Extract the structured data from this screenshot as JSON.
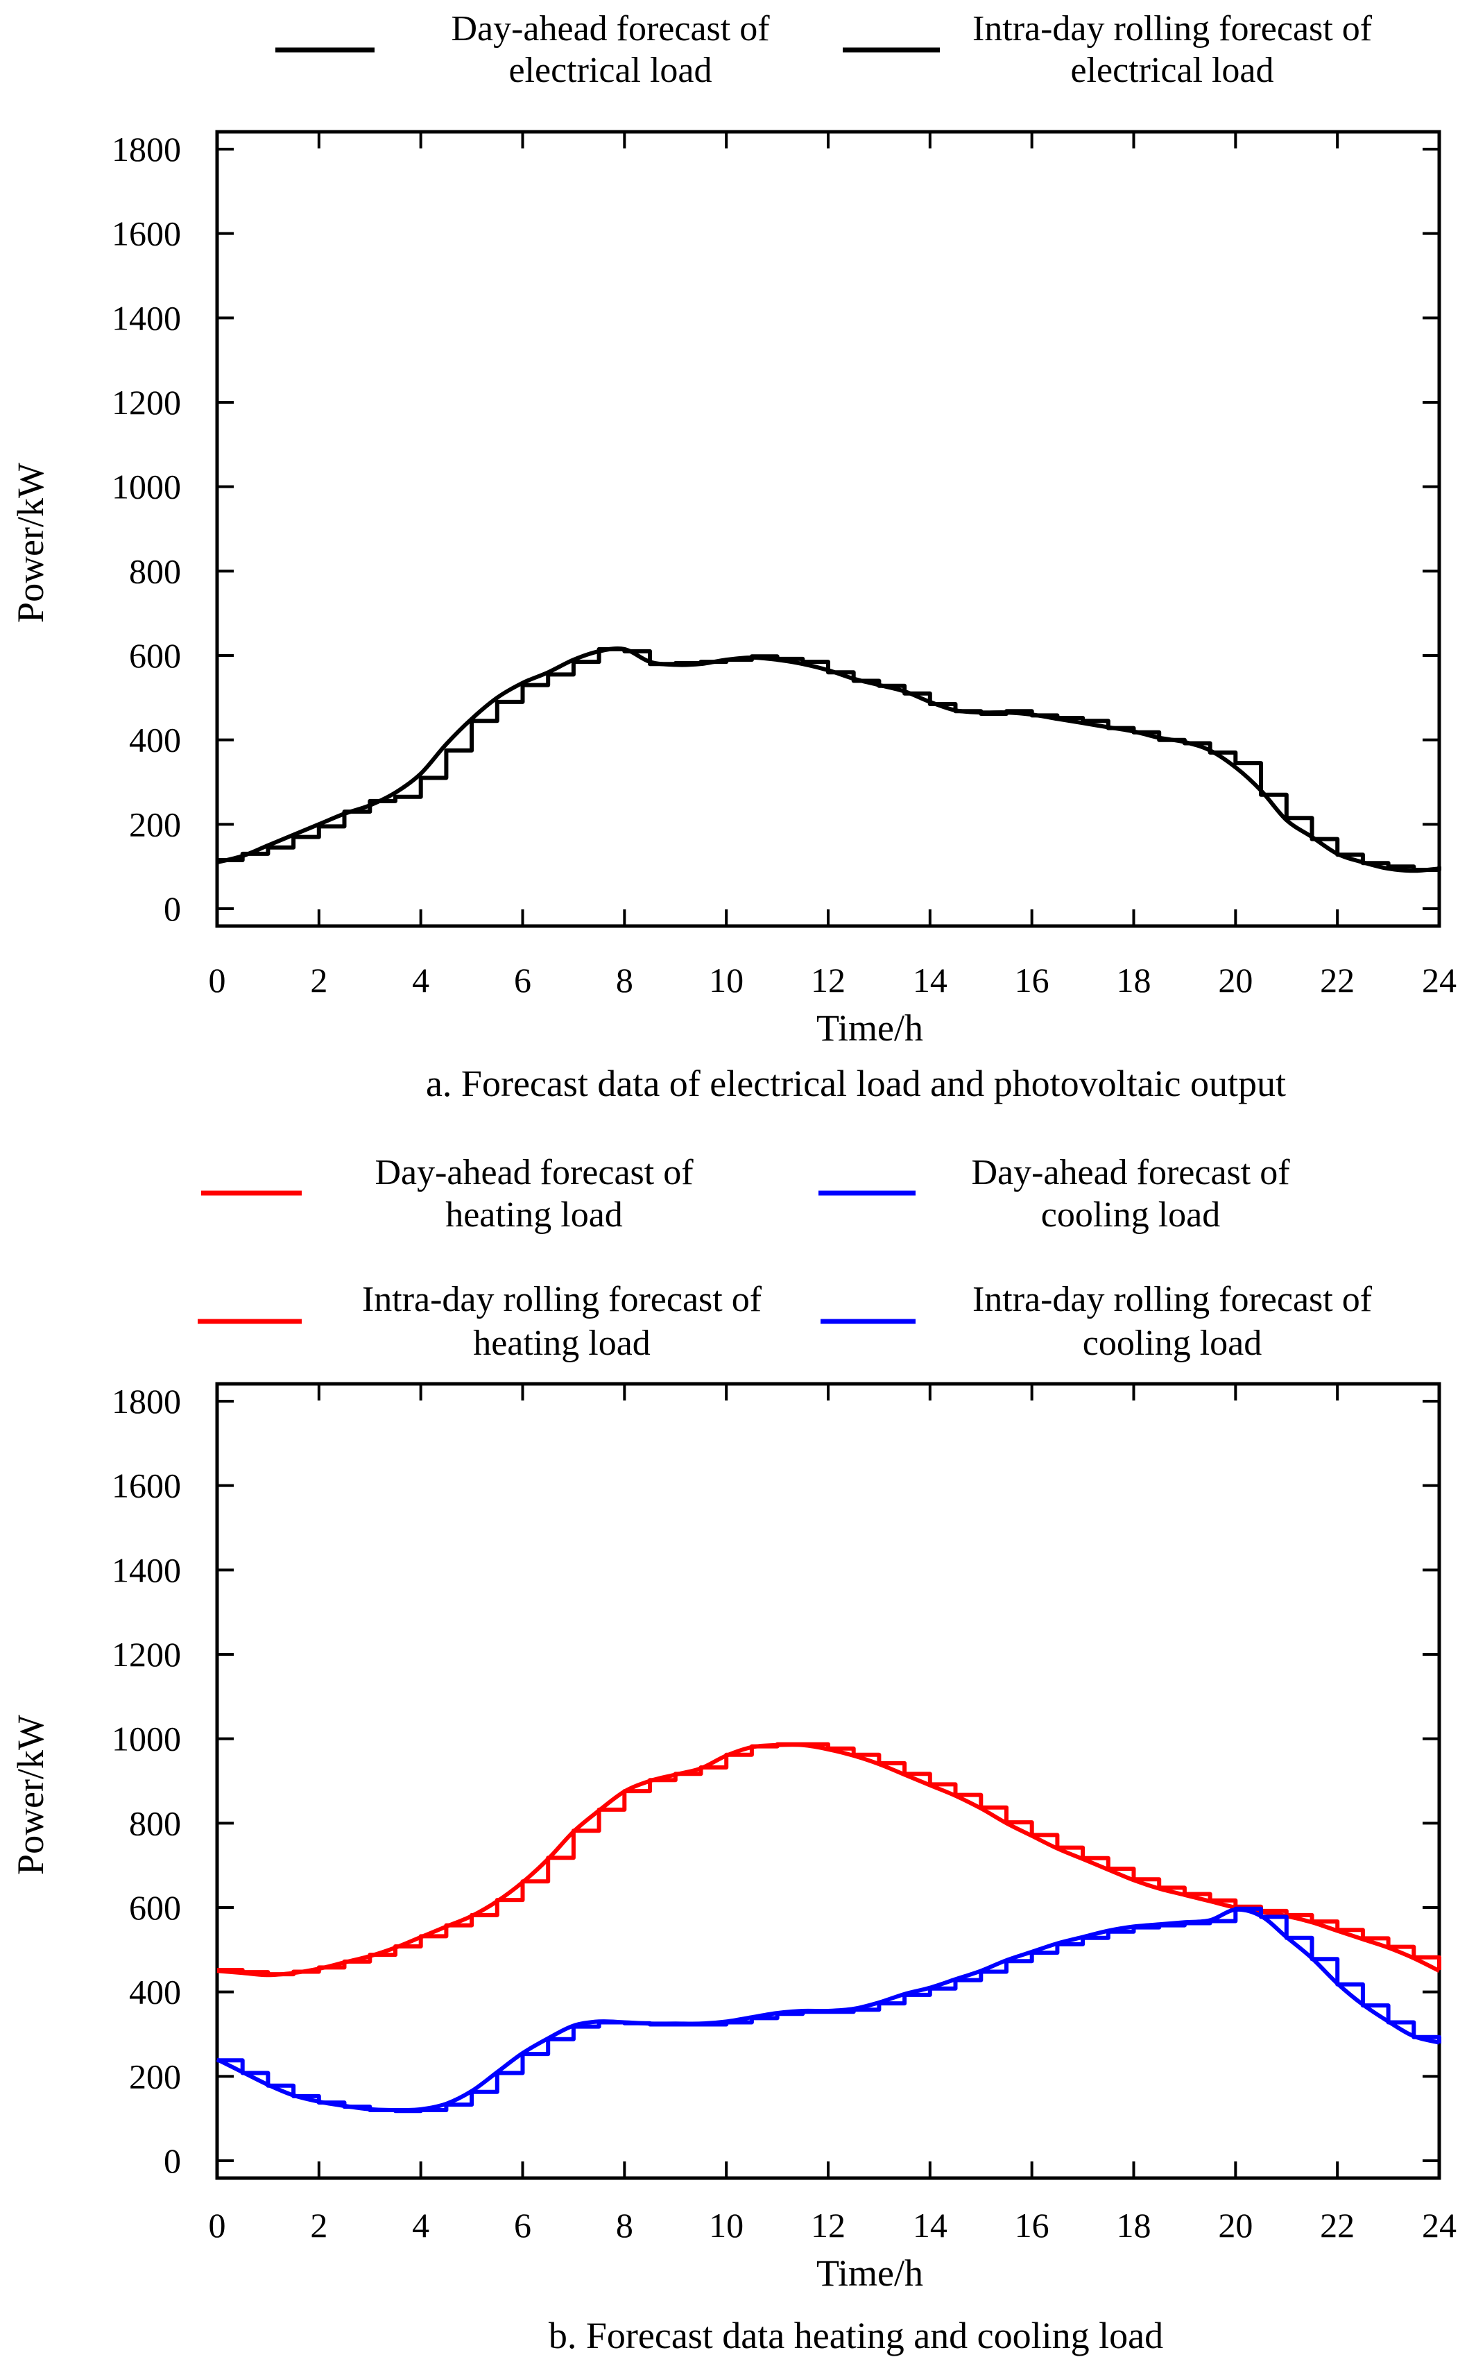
{
  "chart_data": [
    {
      "type": "line",
      "caption": "a. Forecast data of electrical load and photovoltaic output",
      "xlabel": "Time/h",
      "ylabel": "Power/kW",
      "xlim": [
        0,
        24
      ],
      "ylim": [
        0,
        1800
      ],
      "xticks": [
        "0",
        "2",
        "4",
        "6",
        "8",
        "10",
        "12",
        "14",
        "16",
        "18",
        "20",
        "22",
        "24"
      ],
      "yticks": [
        "0",
        "200",
        "400",
        "600",
        "800",
        "1000",
        "1200",
        "1400",
        "1600",
        "1800"
      ],
      "legend_position": "top",
      "series": [
        {
          "name_lines": [
            "Day-ahead forecast of",
            "electrical load"
          ],
          "color": "#000000",
          "style": "smooth",
          "x": [
            0,
            0.5,
            1,
            1.5,
            2,
            2.5,
            3,
            3.5,
            4,
            4.5,
            5,
            5.5,
            6,
            6.5,
            7,
            7.5,
            8,
            8.5,
            9,
            9.5,
            10,
            10.5,
            11,
            11.5,
            12,
            12.5,
            13,
            13.5,
            14,
            14.5,
            15,
            15.5,
            16,
            16.5,
            17,
            17.5,
            18,
            18.5,
            19,
            19.5,
            20,
            20.5,
            21,
            21.5,
            22,
            22.5,
            23,
            23.5,
            24
          ],
          "values": [
            110,
            125,
            150,
            175,
            200,
            225,
            245,
            275,
            320,
            390,
            450,
            500,
            535,
            560,
            590,
            610,
            615,
            585,
            578,
            580,
            590,
            595,
            590,
            580,
            565,
            545,
            530,
            515,
            490,
            470,
            465,
            465,
            460,
            450,
            440,
            430,
            420,
            405,
            395,
            375,
            335,
            280,
            210,
            170,
            130,
            110,
            95,
            90,
            95
          ]
        },
        {
          "name_lines": [
            "Intra-day rolling forecast of",
            "electrical load"
          ],
          "color": "#000000",
          "style": "step",
          "x": [
            0,
            0.5,
            1,
            1.5,
            2,
            2.5,
            3,
            3.5,
            4,
            4.5,
            5,
            5.5,
            6,
            6.5,
            7,
            7.5,
            8,
            8.5,
            9,
            9.5,
            10,
            10.5,
            11,
            11.5,
            12,
            12.5,
            13,
            13.5,
            14,
            14.5,
            15,
            15.5,
            16,
            16.5,
            17,
            17.5,
            18,
            18.5,
            19,
            19.5,
            20,
            20.5,
            21,
            21.5,
            22,
            22.5,
            23,
            23.5,
            24
          ],
          "values": [
            115,
            130,
            145,
            170,
            195,
            230,
            255,
            265,
            310,
            375,
            445,
            490,
            530,
            555,
            585,
            615,
            610,
            580,
            582,
            585,
            590,
            598,
            592,
            585,
            560,
            540,
            528,
            510,
            485,
            468,
            462,
            468,
            458,
            452,
            445,
            428,
            418,
            400,
            392,
            370,
            345,
            270,
            215,
            165,
            128,
            108,
            100,
            92,
            100
          ]
        }
      ]
    },
    {
      "type": "line",
      "caption": "b. Forecast data heating and cooling load",
      "xlabel": "Time/h",
      "ylabel": "Power/kW",
      "xlim": [
        0,
        24
      ],
      "ylim": [
        0,
        1800
      ],
      "xticks": [
        "0",
        "2",
        "4",
        "6",
        "8",
        "10",
        "12",
        "14",
        "16",
        "18",
        "20",
        "22",
        "24"
      ],
      "yticks": [
        "0",
        "200",
        "400",
        "600",
        "800",
        "1000",
        "1200",
        "1400",
        "1600",
        "1800"
      ],
      "legend_position": "top",
      "series": [
        {
          "name_lines": [
            "Day-ahead forecast of",
            "heating load"
          ],
          "color": "#ff0000",
          "style": "smooth",
          "x": [
            0,
            0.5,
            1,
            1.5,
            2,
            2.5,
            3,
            3.5,
            4,
            4.5,
            5,
            5.5,
            6,
            6.5,
            7,
            7.5,
            8,
            8.5,
            9,
            9.5,
            10,
            10.5,
            11,
            11.5,
            12,
            12.5,
            13,
            13.5,
            14,
            14.5,
            15,
            15.5,
            16,
            16.5,
            17,
            17.5,
            18,
            18.5,
            19,
            19.5,
            20,
            20.5,
            21,
            21.5,
            22,
            22.5,
            23,
            23.5,
            24
          ],
          "values": [
            450,
            445,
            440,
            445,
            455,
            470,
            485,
            505,
            530,
            555,
            580,
            615,
            660,
            715,
            780,
            830,
            875,
            900,
            915,
            930,
            960,
            980,
            985,
            985,
            975,
            960,
            940,
            915,
            890,
            865,
            835,
            800,
            770,
            740,
            715,
            690,
            665,
            645,
            630,
            615,
            600,
            590,
            580,
            565,
            545,
            525,
            505,
            480,
            450
          ]
        },
        {
          "name_lines": [
            "Day-ahead forecast of",
            "cooling load"
          ],
          "color": "#0000ff",
          "style": "smooth",
          "x": [
            0,
            0.5,
            1,
            1.5,
            2,
            2.5,
            3,
            3.5,
            4,
            4.5,
            5,
            5.5,
            6,
            6.5,
            7,
            7.5,
            8,
            8.5,
            9,
            9.5,
            10,
            10.5,
            11,
            11.5,
            12,
            12.5,
            13,
            13.5,
            14,
            14.5,
            15,
            15.5,
            16,
            16.5,
            17,
            17.5,
            18,
            18.5,
            19,
            19.5,
            20,
            20.5,
            21,
            21.5,
            22,
            22.5,
            23,
            23.5,
            24
          ],
          "values": [
            240,
            210,
            180,
            155,
            140,
            130,
            122,
            120,
            122,
            135,
            165,
            210,
            255,
            290,
            320,
            330,
            328,
            325,
            325,
            325,
            330,
            340,
            350,
            355,
            355,
            360,
            375,
            395,
            410,
            430,
            450,
            475,
            495,
            515,
            530,
            545,
            555,
            560,
            565,
            570,
            595,
            580,
            530,
            480,
            420,
            370,
            330,
            295,
            280
          ]
        },
        {
          "name_lines": [
            "Intra-day rolling forecast of",
            "heating load"
          ],
          "color": "#ff0000",
          "style": "step",
          "x": [
            0,
            0.5,
            1,
            1.5,
            2,
            2.5,
            3,
            3.5,
            4,
            4.5,
            5,
            5.5,
            6,
            6.5,
            7,
            7.5,
            8,
            8.5,
            9,
            9.5,
            10,
            10.5,
            11,
            11.5,
            12,
            12.5,
            13,
            13.5,
            14,
            14.5,
            15,
            15.5,
            16,
            16.5,
            17,
            17.5,
            18,
            18.5,
            19,
            19.5,
            20,
            20.5,
            21,
            21.5,
            22,
            22.5,
            23,
            23.5,
            24
          ],
          "values": [
            452,
            447,
            442,
            448,
            458,
            472,
            488,
            508,
            532,
            558,
            582,
            618,
            662,
            718,
            782,
            832,
            876,
            902,
            917,
            932,
            962,
            982,
            987,
            987,
            977,
            962,
            942,
            917,
            892,
            867,
            837,
            802,
            772,
            742,
            717,
            692,
            667,
            647,
            632,
            617,
            602,
            592,
            582,
            567,
            547,
            527,
            507,
            482,
            452
          ]
        },
        {
          "name_lines": [
            "Intra-day rolling forecast of",
            "cooling load"
          ],
          "color": "#0000ff",
          "style": "step",
          "x": [
            0,
            0.5,
            1,
            1.5,
            2,
            2.5,
            3,
            3.5,
            4,
            4.5,
            5,
            5.5,
            6,
            6.5,
            7,
            7.5,
            8,
            8.5,
            9,
            9.5,
            10,
            10.5,
            11,
            11.5,
            12,
            12.5,
            13,
            13.5,
            14,
            14.5,
            15,
            15.5,
            16,
            16.5,
            17,
            17.5,
            18,
            18.5,
            19,
            19.5,
            20,
            20.5,
            21,
            21.5,
            22,
            22.5,
            23,
            23.5,
            24
          ],
          "values": [
            238,
            208,
            178,
            153,
            138,
            128,
            120,
            118,
            120,
            133,
            163,
            208,
            253,
            288,
            318,
            328,
            326,
            323,
            323,
            323,
            328,
            338,
            348,
            353,
            353,
            358,
            373,
            393,
            408,
            428,
            448,
            473,
            493,
            513,
            528,
            543,
            553,
            558,
            563,
            568,
            597,
            578,
            528,
            478,
            418,
            368,
            328,
            293,
            278
          ]
        }
      ]
    }
  ]
}
